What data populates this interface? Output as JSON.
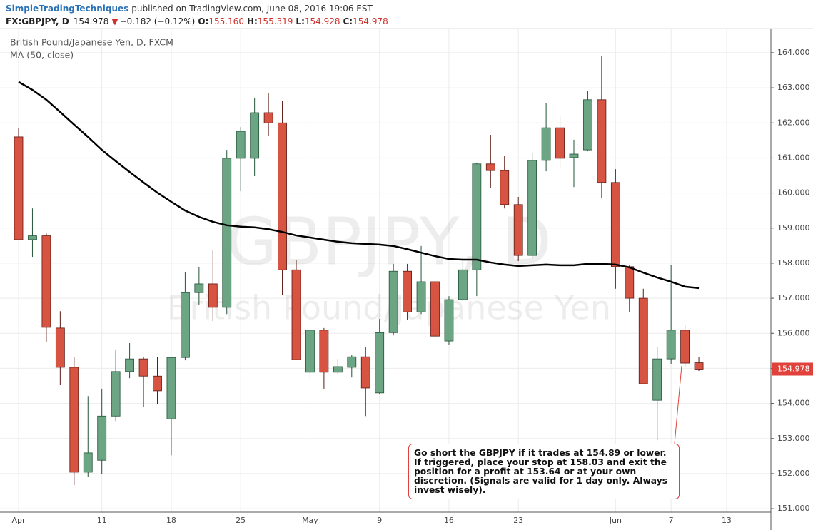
{
  "header": {
    "author": "SimpleTradingTechniques",
    "published": "published on TradingView.com, June 08, 2016 19:06 EST",
    "symbol": "FX:GBPJPY, D",
    "price": "154.978",
    "change": "−0.182 (−0.12%)",
    "ohlc": [
      {
        "label": "O:",
        "value": "155.160"
      },
      {
        "label": "H:",
        "value": "155.319"
      },
      {
        "label": "L:",
        "value": "154.928"
      },
      {
        "label": "C:",
        "value": "154.978"
      }
    ]
  },
  "chart_data": {
    "type": "candlestick",
    "title": "British Pound/Japanese Yen, D, FXCM",
    "watermark": "GBPJPY, D",
    "watermark_subtitle": "British Pound/Japanese Yen",
    "categories": [
      "Apr",
      null,
      null,
      null,
      null,
      null,
      "11",
      null,
      null,
      null,
      null,
      "18",
      null,
      null,
      null,
      null,
      "25",
      null,
      null,
      null,
      null,
      "May",
      null,
      null,
      null,
      null,
      "9",
      null,
      null,
      null,
      null,
      "16",
      null,
      null,
      null,
      null,
      "23",
      null,
      null,
      null,
      null,
      null,
      null,
      "Jun",
      null,
      null,
      null,
      "7",
      null,
      null,
      null,
      "13"
    ],
    "open": [
      161.6,
      158.67,
      158.78,
      156.15,
      155.03,
      152.04,
      152.38,
      153.64,
      154.91,
      155.27,
      154.78,
      153.56,
      155.31,
      157.16,
      157.41,
      156.74,
      160.99,
      160.99,
      162.29,
      162.0,
      157.81,
      154.89,
      156.09,
      154.89,
      155.03,
      155.33,
      154.3,
      156.02,
      157.77,
      156.61,
      157.47,
      155.78,
      156.96,
      157.81,
      160.83,
      160.64,
      159.67,
      158.22,
      160.93,
      161.86,
      161.01,
      161.23,
      162.66,
      160.3,
      157.9,
      157.0,
      154.09,
      155.27,
      156.09,
      155.16,
      null,
      null
    ],
    "high": [
      161.84,
      159.56,
      158.85,
      156.63,
      155.33,
      154.21,
      154.42,
      155.52,
      155.72,
      155.33,
      155.33,
      155.33,
      157.75,
      157.88,
      158.38,
      161.23,
      161.88,
      162.7,
      162.84,
      162.62,
      158.08,
      156.09,
      156.15,
      155.27,
      155.39,
      155.6,
      156.41,
      157.98,
      157.98,
      158.49,
      157.67,
      157.06,
      158.12,
      160.87,
      161.66,
      161.07,
      159.89,
      161.13,
      162.56,
      162.19,
      161.52,
      162.92,
      163.9,
      160.68,
      157.94,
      157.27,
      155.62,
      157.94,
      156.25,
      155.319,
      null,
      null
    ],
    "low": [
      158.67,
      158.18,
      155.74,
      154.52,
      151.67,
      151.91,
      151.98,
      153.5,
      154.72,
      153.89,
      153.99,
      152.52,
      155.23,
      156.82,
      156.35,
      156.55,
      160.05,
      160.48,
      161.64,
      157.1,
      155.25,
      154.72,
      154.42,
      154.82,
      154.74,
      153.64,
      154.27,
      155.94,
      156.39,
      156.55,
      155.78,
      155.68,
      156.92,
      157.06,
      160.15,
      159.56,
      158.06,
      158.14,
      160.62,
      160.72,
      160.17,
      161.19,
      159.87,
      157.27,
      156.61,
      154.56,
      152.95,
      155.13,
      155.05,
      154.928,
      null,
      null
    ],
    "close": [
      158.67,
      158.78,
      156.17,
      155.03,
      152.04,
      152.59,
      153.64,
      154.91,
      155.27,
      154.78,
      154.36,
      155.31,
      157.16,
      157.41,
      156.74,
      160.99,
      161.76,
      162.29,
      162.0,
      157.81,
      155.25,
      156.09,
      154.89,
      155.05,
      155.33,
      154.44,
      156.02,
      157.77,
      156.61,
      157.47,
      155.92,
      156.96,
      157.81,
      160.83,
      160.64,
      159.67,
      158.22,
      160.93,
      161.86,
      160.99,
      161.11,
      162.66,
      160.3,
      157.9,
      157.0,
      154.56,
      155.27,
      156.09,
      155.15,
      154.978,
      null,
      null
    ],
    "up_color": "#6ba583",
    "down_color": "#d75442",
    "overlays": [
      {
        "name": "MA (50, close)",
        "color": "#000000",
        "values": [
          163.17,
          162.94,
          162.66,
          162.31,
          161.95,
          161.6,
          161.23,
          160.91,
          160.6,
          160.3,
          160.01,
          159.75,
          159.5,
          159.32,
          159.18,
          159.08,
          159.04,
          159.02,
          158.97,
          158.89,
          158.79,
          158.73,
          158.67,
          158.61,
          158.57,
          158.55,
          158.53,
          158.49,
          158.4,
          158.3,
          158.2,
          158.12,
          158.1,
          158.1,
          158.02,
          157.96,
          157.92,
          157.94,
          157.96,
          157.94,
          157.94,
          157.98,
          157.98,
          157.96,
          157.88,
          157.73,
          157.59,
          157.47,
          157.33,
          157.29,
          null,
          null
        ]
      }
    ],
    "ylim": [
      150.9,
      164.69
    ],
    "yticks": [
      {
        "value": 151,
        "label": "151.000"
      },
      {
        "value": 152,
        "label": "152.000"
      },
      {
        "value": 153,
        "label": "153.000"
      },
      {
        "value": 154,
        "label": "154.000"
      },
      {
        "value": 155,
        "label": "155.000"
      },
      {
        "value": 156,
        "label": "156.000"
      },
      {
        "value": 157,
        "label": "157.000"
      },
      {
        "value": 158,
        "label": "158.000"
      },
      {
        "value": 159,
        "label": "159.000"
      },
      {
        "value": 160,
        "label": "160.000"
      },
      {
        "value": 161,
        "label": "161.000"
      },
      {
        "value": 162,
        "label": "162.000"
      },
      {
        "value": 163,
        "label": "163.000"
      },
      {
        "value": 164,
        "label": "164.000"
      }
    ],
    "last_price": 154.978,
    "last_price_color": "#e0413a",
    "grid": true,
    "annotation": "Go short the GBPJPY if it trades at 154.89 or lower. If triggered, place your stop at 158.03 and exit the position for a profit at 153.64 or at your own discretion. (Signals are valid for 1 day only. Always invest wisely)."
  }
}
